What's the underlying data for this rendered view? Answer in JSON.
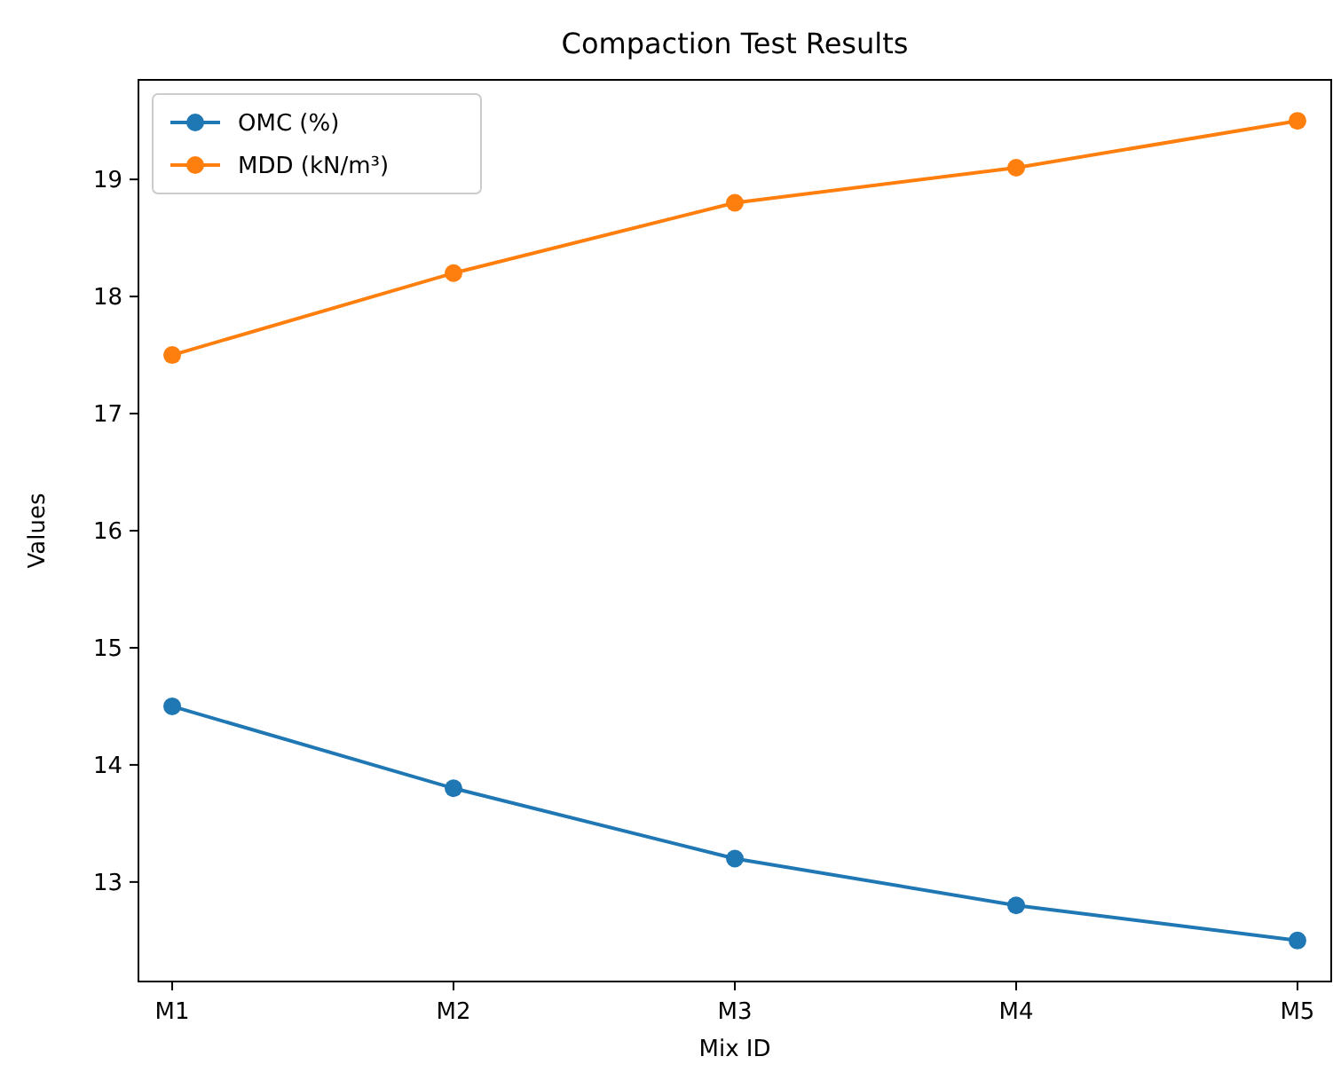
{
  "chart_data": {
    "type": "line",
    "title": "Compaction Test Results",
    "xlabel": "Mix ID",
    "ylabel": "Values",
    "categories": [
      "M1",
      "M2",
      "M3",
      "M4",
      "M5"
    ],
    "series": [
      {
        "name": "OMC (%)",
        "color": "#1f77b4",
        "values": [
          14.5,
          13.8,
          13.2,
          12.8,
          12.5
        ]
      },
      {
        "name": "MDD (kN/m³)",
        "color": "#ff7f0e",
        "values": [
          17.5,
          18.2,
          18.8,
          19.1,
          19.5
        ]
      }
    ],
    "ylim": [
      12.15,
      19.85
    ],
    "yticks": [
      13,
      14,
      15,
      16,
      17,
      18,
      19
    ],
    "grid": false,
    "legend": "top left",
    "marker": "circle",
    "line_style": "solid"
  }
}
